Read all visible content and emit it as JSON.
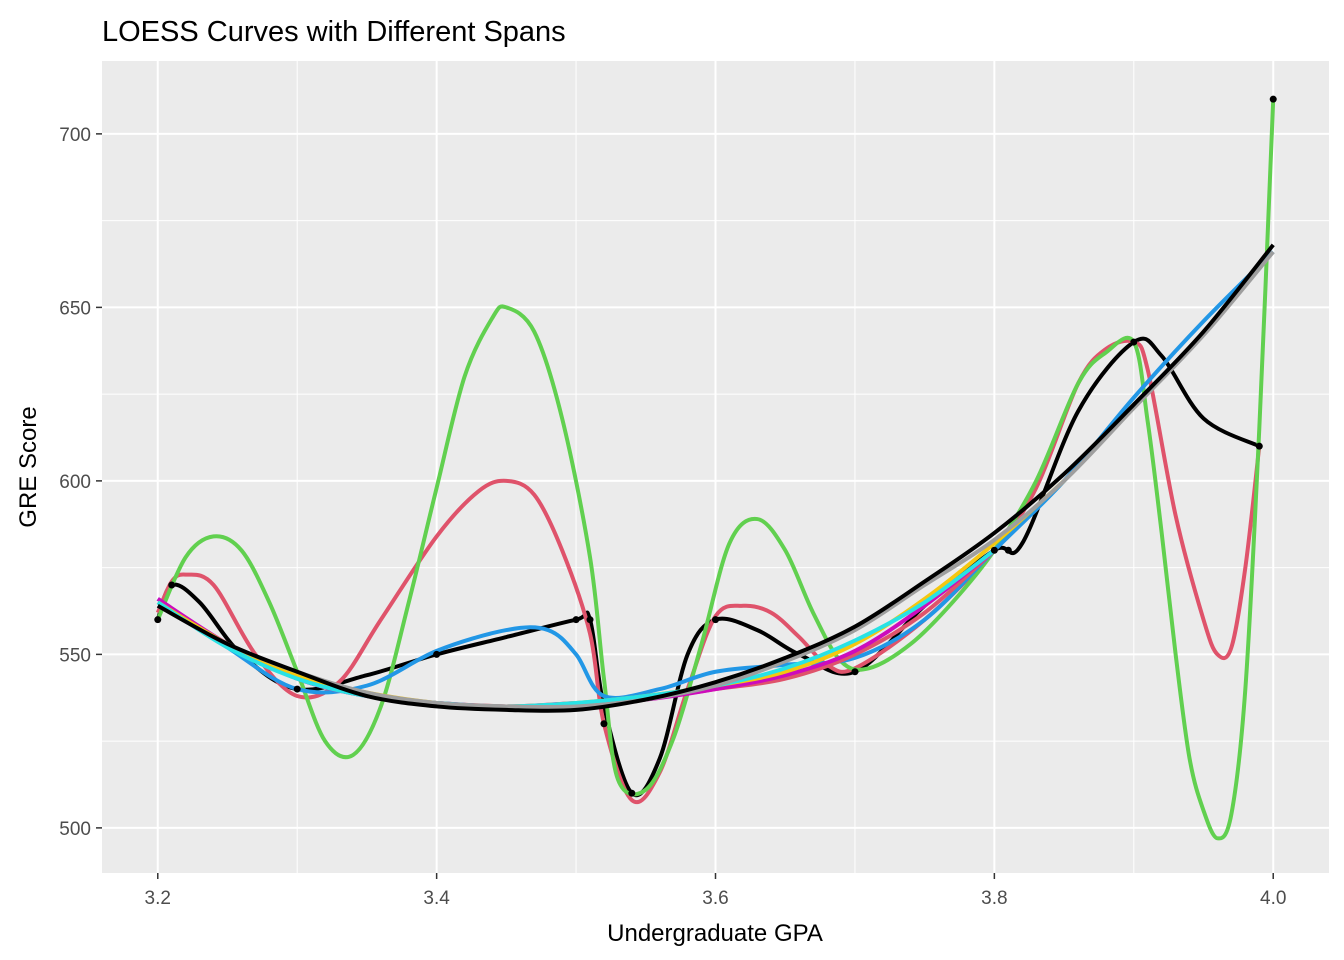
{
  "chart_data": {
    "type": "line",
    "title": "LOESS Curves with Different Spans",
    "xlabel": "Undergraduate GPA",
    "ylabel": "GRE Score",
    "xlim": [
      3.16,
      4.04
    ],
    "ylim": [
      487,
      721
    ],
    "x_ticks": [
      "3.2",
      "3.4",
      "3.6",
      "3.8",
      "4.0"
    ],
    "y_ticks": [
      "500",
      "550",
      "600",
      "650",
      "700"
    ],
    "grid": true,
    "legend": "none",
    "points": {
      "color": "#000000",
      "x": [
        3.2,
        3.21,
        3.3,
        3.4,
        3.5,
        3.51,
        3.52,
        3.54,
        3.6,
        3.7,
        3.8,
        3.81,
        3.9,
        3.99,
        4.0
      ],
      "y": [
        560,
        570,
        540,
        550,
        560,
        560,
        530,
        510,
        560,
        545,
        580,
        580,
        640,
        610,
        710
      ]
    },
    "series": [
      {
        "color": "#000000",
        "x": [
          3.2,
          3.21,
          3.23,
          3.26,
          3.3,
          3.35,
          3.4,
          3.45,
          3.5,
          3.51,
          3.52,
          3.54,
          3.56,
          3.58,
          3.6,
          3.63,
          3.66,
          3.7,
          3.75,
          3.8,
          3.82,
          3.86,
          3.9,
          3.92,
          3.95,
          3.99
        ],
        "y": [
          560,
          570,
          565,
          550,
          540,
          544,
          550,
          555,
          560,
          560,
          535,
          510,
          520,
          550,
          560,
          557,
          550,
          545,
          564,
          580,
          582,
          620,
          640,
          636,
          618,
          610
        ]
      },
      {
        "color": "#DF536B",
        "x": [
          3.2,
          3.21,
          3.22,
          3.24,
          3.27,
          3.3,
          3.33,
          3.36,
          3.4,
          3.43,
          3.45,
          3.47,
          3.49,
          3.51,
          3.52,
          3.54,
          3.56,
          3.58,
          3.6,
          3.62,
          3.64,
          3.66,
          3.68,
          3.7,
          3.75,
          3.8,
          3.83,
          3.86,
          3.88,
          3.9,
          3.91,
          3.93,
          3.95,
          3.96,
          3.97,
          3.98,
          3.99
        ],
        "y": [
          562,
          571,
          573,
          570,
          550,
          538,
          542,
          560,
          584,
          597,
          600,
          596,
          580,
          556,
          530,
          508,
          516,
          540,
          561,
          564,
          562,
          555,
          547,
          546,
          560,
          580,
          598,
          628,
          638,
          640,
          632,
          590,
          560,
          550,
          552,
          575,
          610
        ]
      },
      {
        "color": "#61D04F",
        "x": [
          3.2,
          3.22,
          3.24,
          3.26,
          3.28,
          3.3,
          3.32,
          3.34,
          3.36,
          3.38,
          3.4,
          3.42,
          3.44,
          3.45,
          3.47,
          3.49,
          3.51,
          3.52,
          3.53,
          3.55,
          3.57,
          3.59,
          3.61,
          3.63,
          3.65,
          3.67,
          3.69,
          3.71,
          3.74,
          3.77,
          3.8,
          3.83,
          3.86,
          3.88,
          3.9,
          3.91,
          3.92,
          3.93,
          3.94,
          3.95,
          3.96,
          3.97,
          3.98,
          3.99,
          4.0
        ],
        "y": [
          560,
          578,
          584,
          580,
          565,
          545,
          525,
          521,
          535,
          565,
          598,
          630,
          647,
          650,
          643,
          618,
          578,
          543,
          514,
          511,
          526,
          553,
          582,
          589,
          580,
          562,
          548,
          546,
          553,
          565,
          580,
          600,
          628,
          637,
          640,
          617,
          585,
          550,
          520,
          505,
          497,
          504,
          540,
          615,
          710
        ]
      },
      {
        "color": "#2297E6",
        "x": [
          3.2,
          3.25,
          3.3,
          3.35,
          3.4,
          3.45,
          3.48,
          3.5,
          3.52,
          3.56,
          3.6,
          3.65,
          3.7,
          3.75,
          3.8,
          3.85,
          3.9,
          3.95,
          4.0
        ],
        "y": [
          566,
          552,
          540,
          541,
          551,
          557,
          557,
          550,
          538,
          540,
          545,
          547,
          549,
          560,
          580,
          600,
          624,
          646,
          666
        ]
      },
      {
        "color": "#DF536B",
        "x": [
          3.2,
          3.25,
          3.3,
          3.35,
          3.4,
          3.45,
          3.5,
          3.55,
          3.6,
          3.65,
          3.7,
          3.75,
          3.8
        ],
        "y": [
          565,
          553,
          543,
          538,
          536,
          535,
          535,
          537,
          540,
          543,
          550,
          562,
          580
        ]
      },
      {
        "color": "#CD0BBC",
        "x": [
          3.2,
          3.25,
          3.3,
          3.35,
          3.4,
          3.45,
          3.5,
          3.55,
          3.6,
          3.65,
          3.7,
          3.75,
          3.8
        ],
        "y": [
          566,
          553,
          543,
          538,
          536,
          535,
          536,
          537,
          540,
          544,
          551,
          564,
          580
        ]
      },
      {
        "color": "#F5C710",
        "x": [
          3.2,
          3.25,
          3.3,
          3.35,
          3.4,
          3.45,
          3.5,
          3.55,
          3.6,
          3.65,
          3.7,
          3.75,
          3.8,
          3.85
        ],
        "y": [
          565,
          553,
          544,
          539,
          536,
          535,
          536,
          538,
          541,
          545,
          553,
          566,
          582,
          600
        ]
      },
      {
        "color": "#28E2E5",
        "x": [
          3.2,
          3.25,
          3.3,
          3.35,
          3.4,
          3.45,
          3.5,
          3.55,
          3.6,
          3.65,
          3.7,
          3.75,
          3.8
        ],
        "y": [
          565,
          552,
          543,
          538,
          536,
          535,
          536,
          538,
          541,
          546,
          554,
          565,
          580
        ]
      },
      {
        "color": "#9E9E9E",
        "x": [
          3.2,
          3.25,
          3.3,
          3.35,
          3.4,
          3.45,
          3.5,
          3.55,
          3.6,
          3.65,
          3.7,
          3.75,
          3.8,
          3.85,
          3.9,
          3.95,
          4.0
        ],
        "y": [
          564,
          553,
          545,
          539,
          536,
          535,
          535,
          537,
          541,
          548,
          557,
          570,
          583,
          600,
          621,
          642,
          666
        ]
      },
      {
        "color": "#000000",
        "x": [
          3.2,
          3.25,
          3.3,
          3.35,
          3.4,
          3.45,
          3.5,
          3.55,
          3.6,
          3.65,
          3.7,
          3.75,
          3.8,
          3.85,
          3.9,
          3.95,
          4.0
        ],
        "y": [
          564,
          553,
          545,
          538,
          535,
          534,
          534,
          537,
          542,
          549,
          558,
          571,
          585,
          602,
          622,
          643,
          668
        ]
      }
    ]
  }
}
